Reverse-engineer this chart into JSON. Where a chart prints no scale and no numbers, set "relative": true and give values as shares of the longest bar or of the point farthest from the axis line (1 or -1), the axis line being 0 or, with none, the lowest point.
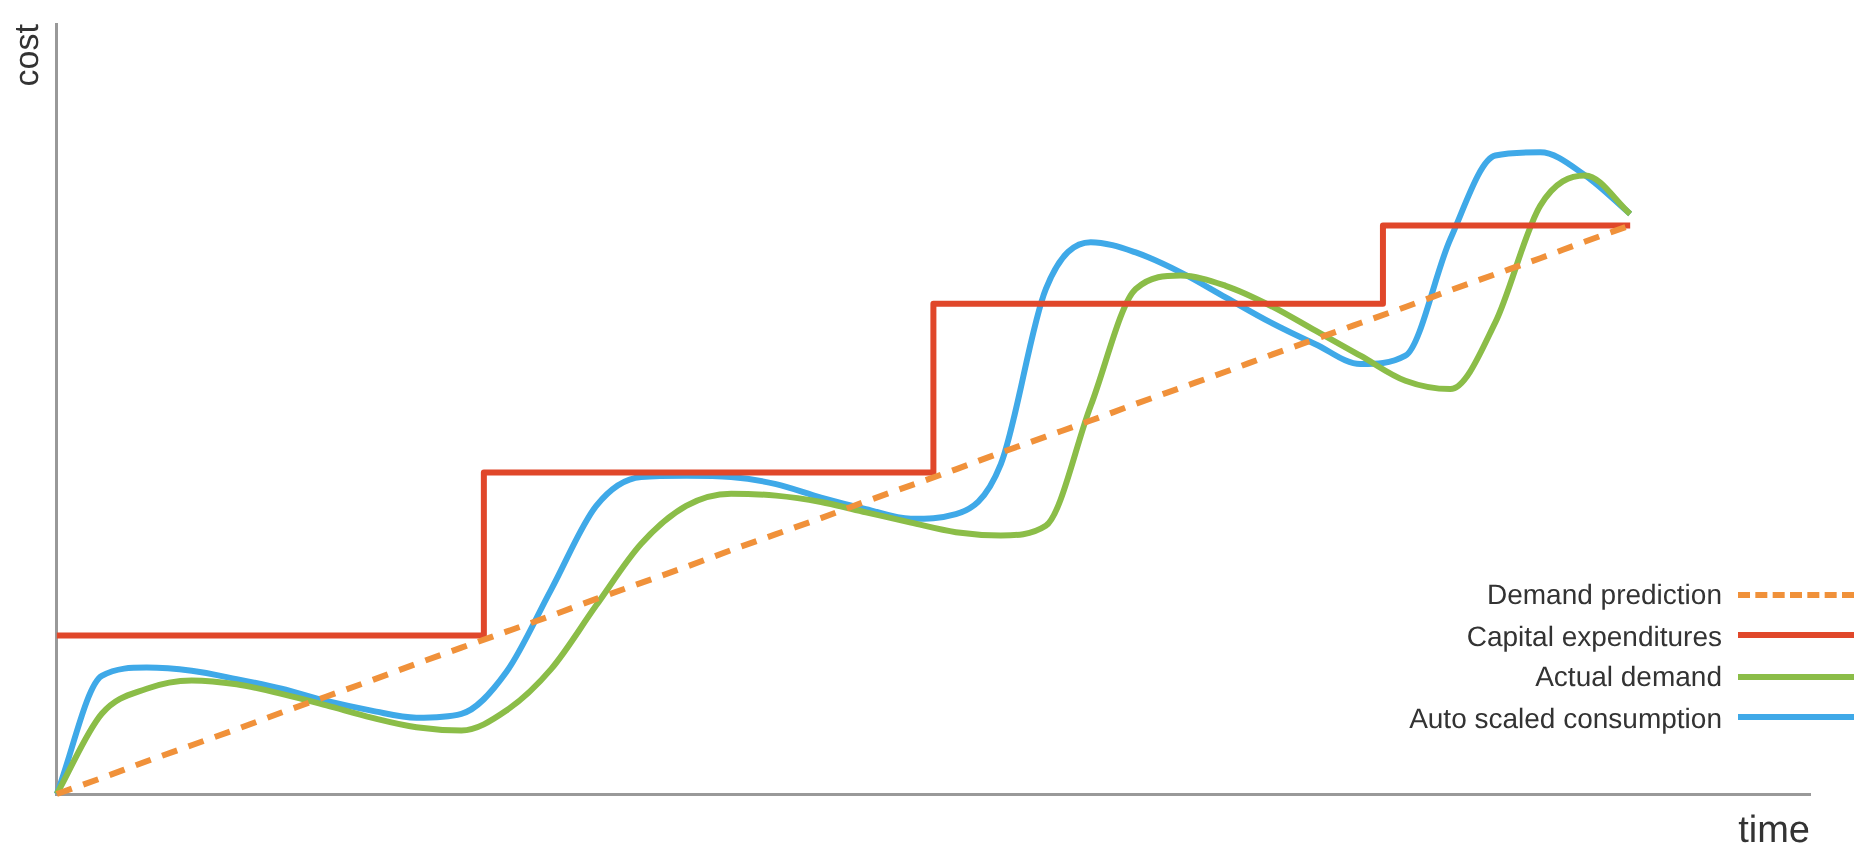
{
  "chart_data": {
    "type": "line",
    "relative": true,
    "xlabel": "time",
    "ylabel": "cost",
    "legend": "bottom right",
    "grid": false,
    "marker": "none",
    "categories": [
      null,
      null,
      null,
      null,
      null,
      null,
      null,
      null,
      null,
      null,
      null,
      null,
      null,
      null,
      null,
      null,
      null,
      null,
      null,
      null,
      null,
      null,
      null,
      null,
      null,
      null,
      null,
      null,
      null,
      null,
      null,
      null,
      null,
      null,
      null,
      null,
      null,
      null,
      null,
      null
    ],
    "series": [
      {
        "name": "Demand prediction",
        "color": "#f0913a",
        "line_style": "dashed",
        "values": [
          0,
          0.025,
          0.051,
          0.076,
          0.101,
          0.127,
          0.152,
          0.177,
          0.203,
          0.228,
          0.253,
          0.278,
          0.304,
          0.329,
          0.354,
          0.38,
          0.405,
          0.43,
          0.456,
          0.481,
          0.506,
          0.532,
          0.557,
          0.582,
          0.608,
          0.633,
          0.658,
          0.684,
          0.709,
          0.734,
          0.759,
          0.785,
          0.81,
          0.835,
          0.861,
          0.886,
          null,
          null,
          null,
          null
        ]
      },
      {
        "name": "Capital expenditures",
        "color": "#e0472a",
        "type": "step",
        "values": [
          0.247,
          0.247,
          0.247,
          0.247,
          0.247,
          0.247,
          0.247,
          0.247,
          0.247,
          0.247,
          0.501,
          0.501,
          0.501,
          0.501,
          0.501,
          0.501,
          0.501,
          0.501,
          0.501,
          0.501,
          0.764,
          0.764,
          0.764,
          0.764,
          0.764,
          0.764,
          0.764,
          0.764,
          0.764,
          0.764,
          0.886,
          0.886,
          0.886,
          0.886,
          0.886,
          0.886,
          null,
          null,
          null,
          null
        ]
      },
      {
        "name": "Actual demand",
        "color": "#8bbd48",
        "values": [
          0,
          0.125,
          0.164,
          0.177,
          0.171,
          0.156,
          0.138,
          0.119,
          0.104,
          0.099,
          0.13,
          0.195,
          0.294,
          0.39,
          0.449,
          0.468,
          0.465,
          0.455,
          0.439,
          0.423,
          0.408,
          0.403,
          0.418,
          0.605,
          0.787,
          0.808,
          0.792,
          0.761,
          0.722,
          0.683,
          0.644,
          0.631,
          0.735,
          0.917,
          0.964,
          0.904,
          null,
          null,
          null,
          null
        ]
      },
      {
        "name": "Auto scaled consumption",
        "color": "#3fa9e8",
        "values": [
          0,
          0.184,
          0.197,
          0.192,
          0.179,
          0.164,
          0.145,
          0.13,
          0.119,
          0.125,
          0.19,
          0.319,
          0.449,
          0.494,
          0.496,
          0.494,
          0.483,
          0.462,
          0.444,
          0.429,
          0.436,
          0.514,
          0.787,
          0.86,
          0.844,
          0.813,
          0.774,
          0.735,
          0.701,
          0.67,
          0.683,
          0.865,
          0.995,
          1,
          0.964,
          0.904,
          null,
          null,
          null,
          null
        ]
      }
    ]
  }
}
